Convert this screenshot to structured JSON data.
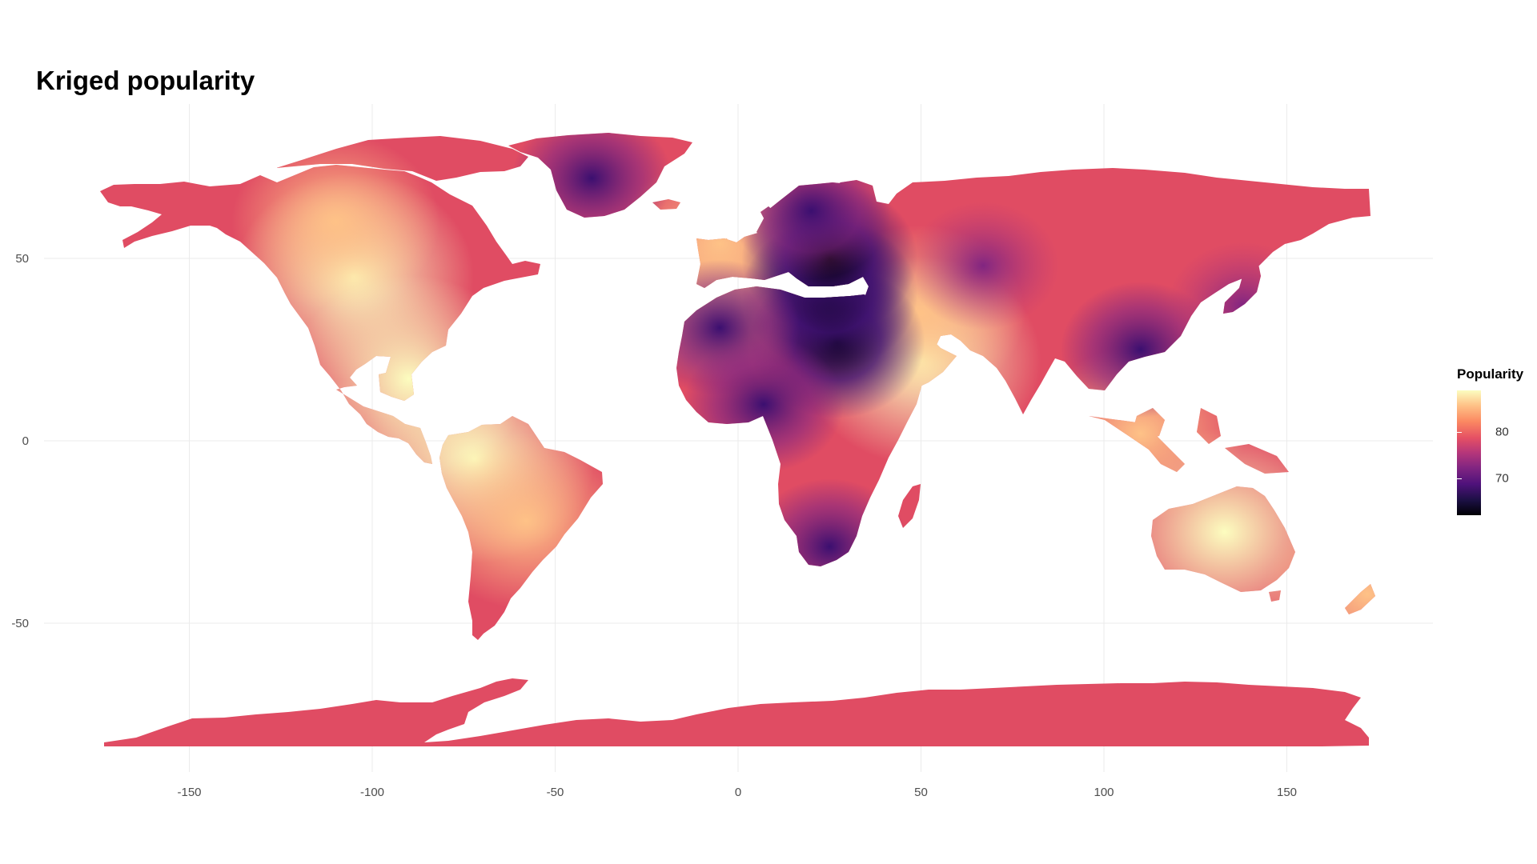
{
  "chart_data": {
    "type": "heatmap",
    "title": "Kriged popularity",
    "xlabel": "",
    "ylabel": "",
    "x_ticks": [
      -150,
      -100,
      -50,
      0,
      50,
      100,
      150
    ],
    "y_ticks": [
      50,
      0,
      -50
    ],
    "xlim": [
      -180,
      190
    ],
    "ylim": [
      -90,
      90
    ],
    "grid": true,
    "legend": {
      "title": "Popularity",
      "placement": "right",
      "ticks": [
        80,
        70
      ],
      "range": [
        62,
        89
      ],
      "palette": "magma",
      "colors": [
        "#000004",
        "#1c1044",
        "#4f127b",
        "#812581",
        "#b5367a",
        "#e55064",
        "#fb8861",
        "#fec287",
        "#fcfdbf"
      ]
    },
    "field_hotspots": [
      {
        "region": "North America interior",
        "lon": -105,
        "lat": 45,
        "value": 89
      },
      {
        "region": "Northern Canada",
        "lon": -110,
        "lat": 60,
        "value": 86
      },
      {
        "region": "Central America",
        "lon": -90,
        "lat": 17,
        "value": 88
      },
      {
        "region": "Amazon west",
        "lon": -72,
        "lat": -5,
        "value": 87
      },
      {
        "region": "South America east",
        "lon": -58,
        "lat": -22,
        "value": 86
      },
      {
        "region": "Arabia",
        "lon": 50,
        "lat": 22,
        "value": 88
      },
      {
        "region": "Iran",
        "lon": 50,
        "lat": 35,
        "value": 84
      },
      {
        "region": "Australia",
        "lon": 133,
        "lat": -25,
        "value": 88
      },
      {
        "region": "Borneo / Malaysia",
        "lon": 110,
        "lat": 2,
        "value": 86
      },
      {
        "region": "UK / Ireland",
        "lon": -5,
        "lat": 54,
        "value": 86
      },
      {
        "region": "Iberia",
        "lon": -5,
        "lat": 40,
        "value": 84
      },
      {
        "region": "New Zealand",
        "lon": 172,
        "lat": -42,
        "value": 86
      },
      {
        "region": "Egypt",
        "lon": 27,
        "lat": 27,
        "value": 62
      },
      {
        "region": "Greece / Turkey",
        "lon": 25,
        "lat": 40,
        "value": 62
      },
      {
        "region": "Eastern Europe",
        "lon": 25,
        "lat": 50,
        "value": 64
      },
      {
        "region": "Algeria north",
        "lon": -5,
        "lat": 31,
        "value": 66
      },
      {
        "region": "Scandinavia",
        "lon": 20,
        "lat": 63,
        "value": 68
      },
      {
        "region": "Greenland",
        "lon": -40,
        "lat": 72,
        "value": 68
      },
      {
        "region": "Nigeria",
        "lon": 7,
        "lat": 10,
        "value": 68
      },
      {
        "region": "South Africa",
        "lon": 25,
        "lat": -29,
        "value": 68
      },
      {
        "region": "Kazakhstan",
        "lon": 67,
        "lat": 48,
        "value": 70
      },
      {
        "region": "East China",
        "lon": 110,
        "lat": 25,
        "value": 69
      },
      {
        "region": "Japan",
        "lon": 138,
        "lat": 37,
        "value": 73
      },
      {
        "region": "Baseline",
        "lon": 0,
        "lat": 0,
        "value": 79
      }
    ]
  }
}
